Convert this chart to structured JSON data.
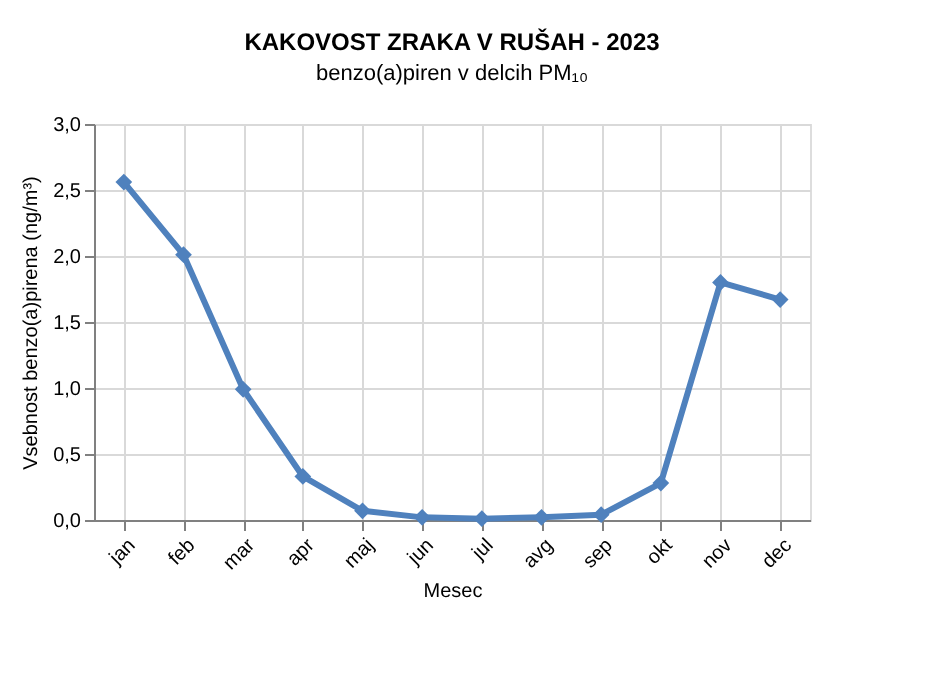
{
  "chart_data": {
    "type": "line",
    "title": "KAKOVOST ZRAKA V RUŠAH - 2023",
    "subtitle": "benzo(a)piren v delcih PM₁₀",
    "xlabel": "Mesec",
    "ylabel": "Vsebnost benzo(a)pirena (ng/m³)",
    "categories": [
      "jan",
      "feb",
      "mar",
      "apr",
      "maj",
      "jun",
      "jul",
      "avg",
      "sep",
      "okt",
      "nov",
      "dec"
    ],
    "series": [
      {
        "color": "#4f81bd",
        "values": [
          2.56,
          2.01,
          0.99,
          0.33,
          0.07,
          0.02,
          0.01,
          0.02,
          0.04,
          0.28,
          1.8,
          1.67
        ]
      }
    ],
    "ylim": [
      0,
      3
    ],
    "yticks": [
      {
        "value": 0,
        "label": "0,0"
      },
      {
        "value": 0.5,
        "label": "0,5"
      },
      {
        "value": 1,
        "label": "1,0"
      },
      {
        "value": 1.5,
        "label": "1,5"
      },
      {
        "value": 2,
        "label": "2,0"
      },
      {
        "value": 2.5,
        "label": "2,5"
      },
      {
        "value": 3,
        "label": "3,0"
      }
    ],
    "grid": true,
    "marker": "diamond",
    "line_style": "solid"
  }
}
